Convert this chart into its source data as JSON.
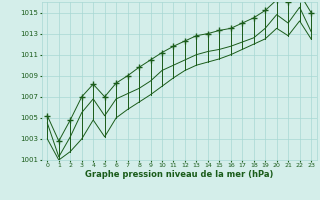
{
  "hours": [
    0,
    1,
    2,
    3,
    4,
    5,
    6,
    7,
    8,
    9,
    10,
    11,
    12,
    13,
    14,
    15,
    16,
    17,
    18,
    19,
    20,
    21,
    22,
    23
  ],
  "current": [
    1004.5,
    1001.3,
    1003.2,
    1005.5,
    1006.8,
    1005.2,
    1006.8,
    1007.3,
    1007.8,
    1008.5,
    1009.5,
    1010.0,
    1010.5,
    1011.0,
    1011.3,
    1011.5,
    1011.8,
    1012.2,
    1012.6,
    1013.5,
    1014.8,
    1014.0,
    1015.5,
    1013.2
  ],
  "high": [
    1005.2,
    1002.8,
    1004.8,
    1007.0,
    1008.2,
    1007.0,
    1008.3,
    1009.0,
    1009.8,
    1010.5,
    1011.2,
    1011.8,
    1012.3,
    1012.8,
    1013.0,
    1013.3,
    1013.5,
    1014.0,
    1014.5,
    1015.2,
    1016.2,
    1016.0,
    1016.8,
    1015.0
  ],
  "low": [
    1003.0,
    1001.0,
    1001.8,
    1003.0,
    1004.8,
    1003.2,
    1005.0,
    1005.8,
    1006.5,
    1007.2,
    1008.0,
    1008.8,
    1009.5,
    1010.0,
    1010.3,
    1010.6,
    1011.0,
    1011.5,
    1012.0,
    1012.5,
    1013.5,
    1012.8,
    1014.2,
    1012.5
  ],
  "ylim_min": 1001,
  "ylim_max": 1016,
  "yticks": [
    1001,
    1003,
    1005,
    1007,
    1009,
    1011,
    1013,
    1015
  ],
  "xlabel": "Graphe pression niveau de la mer (hPa)",
  "line_color": "#1a5c1a",
  "bg_color": "#d4eeea",
  "grid_color": "#a8d8d4"
}
